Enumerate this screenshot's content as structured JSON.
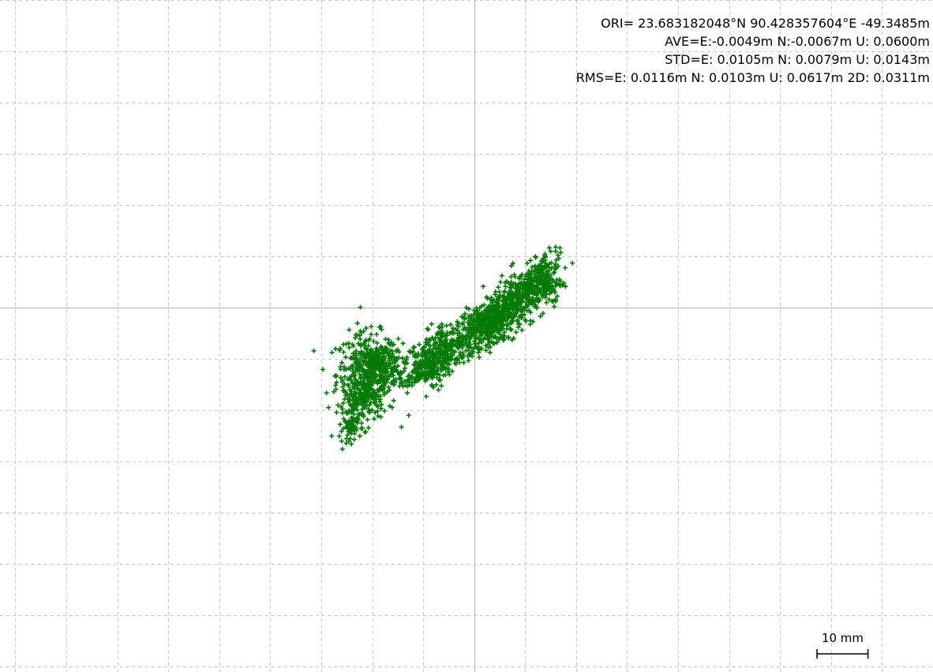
{
  "stats": {
    "ori": "ORI= 23.683182048°N  90.428357604°E -49.3485m",
    "ave": "AVE=E:-0.0049m N:-0.0067m U: 0.0600m",
    "std": "STD=E: 0.0105m N: 0.0079m U: 0.0143m",
    "rms": "RMS=E: 0.0116m N: 0.0103m U: 0.0617m 2D: 0.0311m"
  },
  "scale_bar": {
    "label": "10 mm",
    "length_mm": 10
  },
  "colors": {
    "points": "#007a00",
    "grid": "#c8c8c8",
    "axes": "#b4b4b4",
    "text": "#000000"
  },
  "chart_data": {
    "type": "scatter",
    "title": "",
    "xlabel": "",
    "ylabel": "",
    "units": "mm",
    "grid": true,
    "grid_spacing_mm": 10,
    "xlim": [
      -93,
      90
    ],
    "ylim": [
      -71,
      60
    ],
    "marker": "plus",
    "series": [
      {
        "clusters": [
          {
            "cx": -21,
            "cy": -13,
            "sx": 3.0,
            "sy": 4.0,
            "n": 420
          },
          {
            "cx": -18,
            "cy": -11,
            "sx": 2.0,
            "sy": 2.0,
            "n": 160
          },
          {
            "cx": -9,
            "cy": -11,
            "sx": 2.2,
            "sy": 2.2,
            "n": 200
          },
          {
            "cx": -5,
            "cy": -7,
            "sx": 2.0,
            "sy": 2.0,
            "n": 140
          },
          {
            "cx": 2,
            "cy": -4,
            "sx": 2.2,
            "sy": 1.8,
            "n": 240
          },
          {
            "cx": 5,
            "cy": -2,
            "sx": 2.2,
            "sy": 1.7,
            "n": 200
          },
          {
            "cx": 9,
            "cy": 2,
            "sx": 2.4,
            "sy": 1.7,
            "n": 200
          },
          {
            "cx": 13,
            "cy": 5,
            "sx": 2.2,
            "sy": 2.0,
            "n": 180
          }
        ],
        "segments": [
          {
            "from": [
              -25,
              -25
            ],
            "to": [
              -20,
              -14
            ],
            "spread": 1.4,
            "n": 160
          },
          {
            "from": [
              -14,
              -14
            ],
            "to": [
              0,
              -6
            ],
            "spread": 1.4,
            "n": 180
          },
          {
            "from": [
              0,
              -4
            ],
            "to": [
              16,
              10
            ],
            "spread": 1.2,
            "n": 180
          }
        ],
        "outliers": [
          [
            -26,
            -26
          ],
          [
            -25,
            -25.5
          ],
          [
            15,
            11
          ],
          [
            16,
            11
          ],
          [
            12,
            10
          ],
          [
            -7,
            -16
          ],
          [
            -8,
            -15.5
          ],
          [
            -10,
            -9
          ],
          [
            -3,
            -3
          ]
        ]
      }
    ]
  }
}
